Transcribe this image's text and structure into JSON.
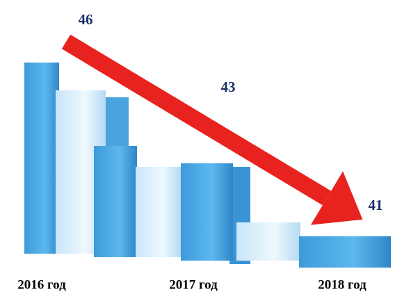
{
  "chart_data": {
    "type": "line",
    "categories": [
      "2016 год",
      "2017 год",
      "2018 год"
    ],
    "values": [
      46,
      43,
      41
    ],
    "color": "#e8231f"
  }
}
